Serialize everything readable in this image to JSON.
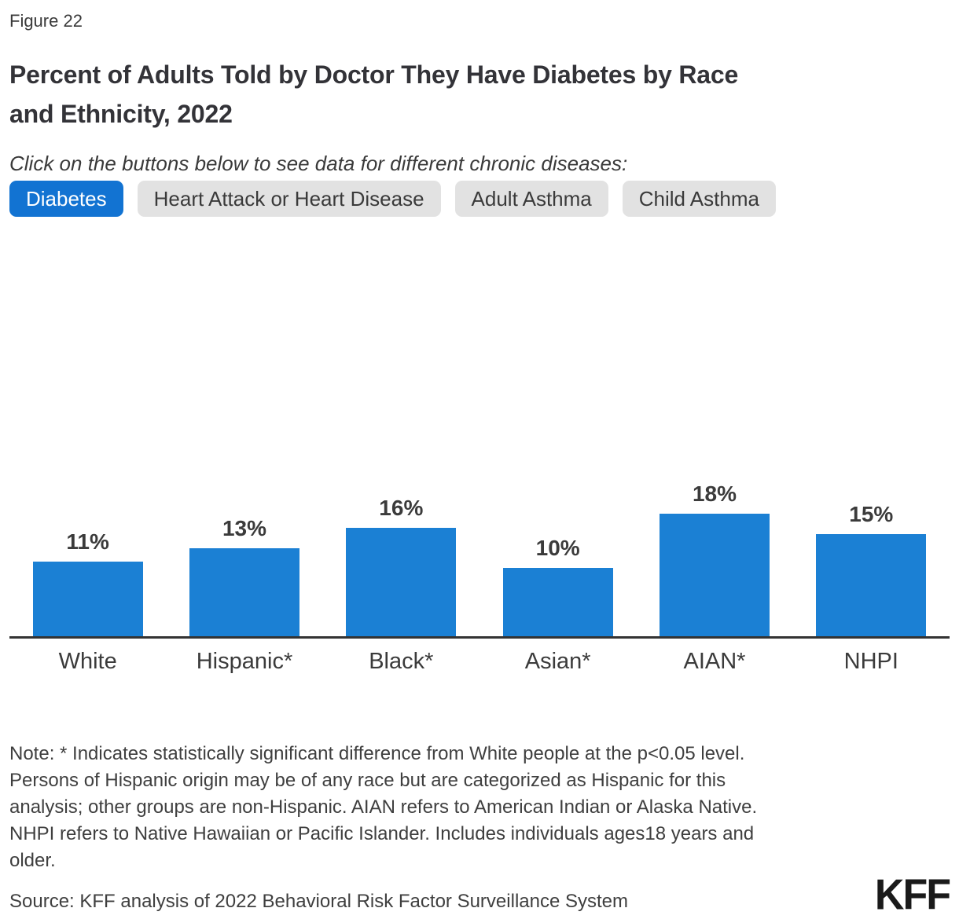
{
  "figure_label": "Figure 22",
  "title": "Percent of Adults Told by Doctor They Have Diabetes by Race\nand Ethnicity, 2022",
  "subtitle": "Click on the buttons below to see data for different chronic diseases:",
  "buttons": [
    {
      "label": "Diabetes",
      "active": true
    },
    {
      "label": "Heart Attack or Heart Disease",
      "active": false
    },
    {
      "label": "Adult Asthma",
      "active": false
    },
    {
      "label": "Child Asthma",
      "active": false
    }
  ],
  "chart_data": {
    "type": "bar",
    "title": "Percent of Adults Told by Doctor They Have Diabetes by Race and Ethnicity, 2022",
    "categories": [
      "White",
      "Hispanic*",
      "Black*",
      "Asian*",
      "AIAN*",
      "NHPI"
    ],
    "values": [
      11,
      13,
      16,
      10,
      18,
      15
    ],
    "value_labels": [
      "11%",
      "13%",
      "16%",
      "10%",
      "18%",
      "15%"
    ],
    "xlabel": "",
    "ylabel": "",
    "ylim": [
      0,
      20
    ],
    "grid": false,
    "legend": "none",
    "data_labels_position": "above-bars",
    "bar_color": "#1b80d4",
    "axis_color": "#333333"
  },
  "note": "Note: * Indicates statistically significant difference from White people at the p<0.05 level.\nPersons of Hispanic origin may be of any race but are categorized as Hispanic for this\nanalysis; other groups are non-Hispanic. AIAN refers to American Indian or Alaska Native.\nNHPI refers to Native Hawaiian or Pacific Islander. Includes individuals ages18 years and\nolder.",
  "source": "Source: KFF analysis of 2022 Behavioral Risk Factor Surveillance System",
  "logo_text": "KFF",
  "colors": {
    "active_button_blue": "#1273d2",
    "bar_blue": "#1b80d4",
    "inactive_button_gray": "#e2e2e2",
    "text_dark": "#3a3a3a"
  }
}
